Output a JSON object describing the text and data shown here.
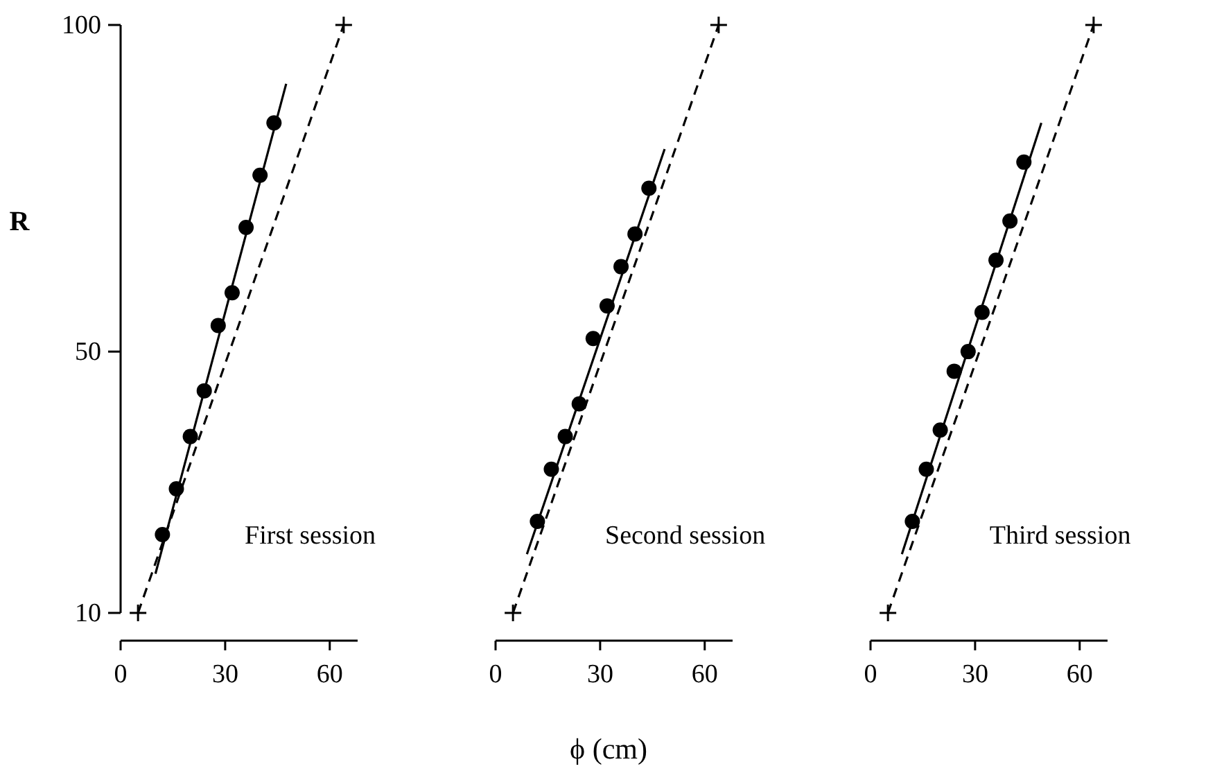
{
  "chart_data": [
    {
      "type": "scatter",
      "ylabel": "R",
      "xlim": [
        0,
        68
      ],
      "xticks": [
        0,
        30,
        60
      ],
      "ylim": [
        10,
        100
      ],
      "yticks": [
        10,
        50,
        100
      ],
      "annotations": [
        "First session"
      ],
      "series": [
        {
          "color": "#000000",
          "marker": "circle",
          "x": [
            12,
            16,
            20,
            24,
            28,
            32,
            36,
            40,
            44
          ],
          "values": [
            22,
            29,
            37,
            44,
            54,
            59,
            69,
            77,
            85
          ]
        },
        {
          "type": "line",
          "color": "#000000",
          "line_style": "solid",
          "marker": "none",
          "x": [
            10,
            47.5
          ],
          "values": [
            16,
            91
          ]
        },
        {
          "type": "line",
          "color": "#000000",
          "line_style": "dashed",
          "marker": "cross",
          "x": [
            5,
            64
          ],
          "values": [
            10,
            100
          ]
        }
      ]
    },
    {
      "type": "scatter",
      "xlabel": "ϕ  (cm)",
      "xlim": [
        0,
        68
      ],
      "xticks": [
        0,
        30,
        60
      ],
      "ylim": [
        10,
        100
      ],
      "tick_labels": "x",
      "annotations": [
        "Second session"
      ],
      "series": [
        {
          "color": "#000000",
          "marker": "circle",
          "x": [
            12,
            16,
            20,
            24,
            28,
            32,
            36,
            40,
            44
          ],
          "values": [
            24,
            32,
            37,
            42,
            52,
            57,
            63,
            68,
            75
          ]
        },
        {
          "type": "line",
          "color": "#000000",
          "line_style": "solid",
          "marker": "none",
          "x": [
            9,
            48.5
          ],
          "values": [
            19,
            81
          ]
        },
        {
          "type": "line",
          "color": "#000000",
          "line_style": "dashed",
          "marker": "cross",
          "x": [
            5,
            64
          ],
          "values": [
            10,
            100
          ]
        }
      ]
    },
    {
      "type": "scatter",
      "xlim": [
        0,
        68
      ],
      "xticks": [
        0,
        30,
        60
      ],
      "ylim": [
        10,
        100
      ],
      "tick_labels": "x",
      "annotations": [
        "Third session"
      ],
      "series": [
        {
          "color": "#000000",
          "marker": "circle",
          "x": [
            12,
            16,
            20,
            24,
            28,
            32,
            36,
            40,
            44
          ],
          "values": [
            24,
            32,
            38,
            47,
            50,
            56,
            64,
            70,
            79
          ]
        },
        {
          "type": "line",
          "color": "#000000",
          "line_style": "solid",
          "marker": "none",
          "x": [
            9,
            49
          ],
          "values": [
            19,
            85
          ]
        },
        {
          "type": "line",
          "color": "#000000",
          "line_style": "dashed",
          "marker": "cross",
          "x": [
            5,
            64
          ],
          "values": [
            10,
            100
          ]
        }
      ]
    }
  ]
}
